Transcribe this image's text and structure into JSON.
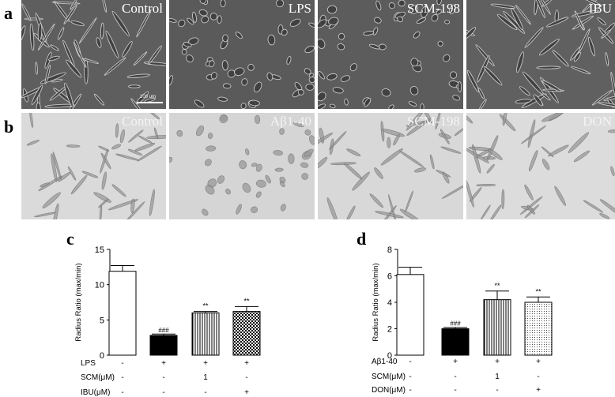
{
  "panels": {
    "a": {
      "letter": "a",
      "images": [
        {
          "label": "Control"
        },
        {
          "label": "LPS"
        },
        {
          "label": "SCM-198"
        },
        {
          "label": "IBU"
        }
      ],
      "scalebar_label": "100 um"
    },
    "b": {
      "letter": "b",
      "images": [
        {
          "label": "Control"
        },
        {
          "label": "Aβ1-40"
        },
        {
          "label": "SCM-198"
        },
        {
          "label": "DON"
        }
      ]
    },
    "c": {
      "letter": "c"
    },
    "d": {
      "letter": "d"
    }
  },
  "chart_data": [
    {
      "id": "c",
      "type": "bar",
      "ylabel": "Radius Ratio (max/min)",
      "ylim": [
        0,
        15
      ],
      "yticks": [
        0,
        5,
        10,
        15
      ],
      "values": [
        11.9,
        2.8,
        6.0,
        6.2
      ],
      "errors": [
        0.8,
        0.2,
        0.2,
        0.7
      ],
      "significance": [
        "",
        "###",
        "**",
        "**"
      ],
      "fills": [
        "white",
        "black",
        "vertical-lines",
        "checker"
      ],
      "conditions": [
        {
          "label": "LPS",
          "marks": [
            "-",
            "+",
            "+",
            "+"
          ]
        },
        {
          "label": "SCM(μM)",
          "marks": [
            "-",
            "-",
            "1",
            "-"
          ]
        },
        {
          "label": "IBU(μM)",
          "marks": [
            "-",
            "-",
            "-",
            "+"
          ]
        }
      ]
    },
    {
      "id": "d",
      "type": "bar",
      "ylabel": "Radius Ratio (max/min)",
      "ylim": [
        0,
        8
      ],
      "yticks": [
        0,
        2,
        4,
        6,
        8
      ],
      "values": [
        6.1,
        2.0,
        4.2,
        4.0
      ],
      "errors": [
        0.55,
        0.1,
        0.65,
        0.4
      ],
      "significance": [
        "",
        "###",
        "**",
        "**"
      ],
      "fills": [
        "white",
        "black",
        "vertical-lines",
        "dots"
      ],
      "conditions": [
        {
          "label": "Aβ1-40",
          "marks": [
            "-",
            "+",
            "+",
            "+"
          ]
        },
        {
          "label": "SCM(μM)",
          "marks": [
            "-",
            "-",
            "1",
            "-"
          ]
        },
        {
          "label": "DON(μM)",
          "marks": [
            "-",
            "-",
            "-",
            "+"
          ]
        }
      ]
    }
  ]
}
